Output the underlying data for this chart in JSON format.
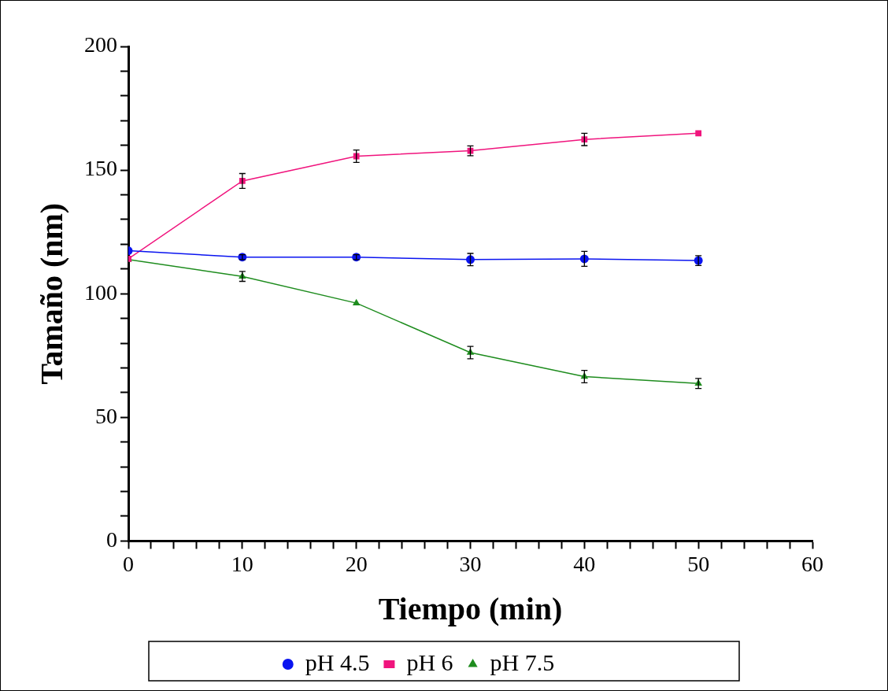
{
  "chart_data": {
    "type": "line",
    "xlabel": "Tiempo (min)",
    "ylabel": "Tamaño (nm)",
    "x": [
      0,
      10,
      20,
      30,
      40,
      50
    ],
    "series": [
      {
        "name": "pH 4.5",
        "color": "#0a14f0",
        "marker": "circle",
        "values": [
          117.4,
          114.8,
          114.8,
          113.8,
          114.1,
          113.4
        ],
        "errors": [
          null,
          1,
          1,
          2.5,
          3,
          2
        ]
      },
      {
        "name": "pH 6",
        "color": "#f0147d",
        "marker": "square",
        "values": [
          114.1,
          145.6,
          155.6,
          157.8,
          162.4,
          164.9
        ],
        "errors": [
          null,
          3,
          2.5,
          2,
          2.5,
          null
        ]
      },
      {
        "name": "pH 7.5",
        "color": "#1e8c1e",
        "marker": "triangle",
        "values": [
          113.8,
          107,
          96.2,
          76.2,
          66.5,
          63.7
        ],
        "errors": [
          null,
          2,
          null,
          2.5,
          2.5,
          2
        ]
      }
    ],
    "xlim": [
      0,
      60
    ],
    "xticks": [
      0,
      {
        "value": 2,
        "label": null
      },
      {
        "value": 4,
        "label": null
      },
      {
        "value": 6,
        "label": null
      },
      {
        "value": 8,
        "label": null
      },
      10,
      {
        "value": 12,
        "label": null
      },
      {
        "value": 14,
        "label": null
      },
      {
        "value": 16,
        "label": null
      },
      {
        "value": 18,
        "label": null
      },
      20,
      {
        "value": 22,
        "label": null
      },
      {
        "value": 24,
        "label": null
      },
      {
        "value": 26,
        "label": null
      },
      {
        "value": 28,
        "label": null
      },
      30,
      {
        "value": 32,
        "label": null
      },
      {
        "value": 34,
        "label": null
      },
      {
        "value": 36,
        "label": null
      },
      {
        "value": 38,
        "label": null
      },
      40,
      {
        "value": 42,
        "label": null
      },
      {
        "value": 44,
        "label": null
      },
      {
        "value": 46,
        "label": null
      },
      {
        "value": 48,
        "label": null
      },
      50,
      {
        "value": 52,
        "label": null
      },
      {
        "value": 54,
        "label": null
      },
      {
        "value": 56,
        "label": null
      },
      {
        "value": 58,
        "label": null
      },
      60
    ],
    "ylim": [
      0,
      200
    ],
    "yticks": [
      0,
      {
        "value": 10,
        "label": null
      },
      {
        "value": 20,
        "label": null
      },
      {
        "value": 30,
        "label": null
      },
      {
        "value": 40,
        "label": null
      },
      50,
      {
        "value": 60,
        "label": null
      },
      {
        "value": 70,
        "label": null
      },
      {
        "value": 80,
        "label": null
      },
      {
        "value": 90,
        "label": null
      },
      100,
      {
        "value": 110,
        "label": null
      },
      {
        "value": 120,
        "label": null
      },
      {
        "value": 130,
        "label": null
      },
      {
        "value": 140,
        "label": null
      },
      150,
      {
        "value": 160,
        "label": null
      },
      {
        "value": 170,
        "label": null
      },
      {
        "value": 180,
        "label": null
      },
      {
        "value": 190,
        "label": null
      },
      200
    ],
    "grid": false,
    "legend": "bottom",
    "line_style": "solid"
  }
}
